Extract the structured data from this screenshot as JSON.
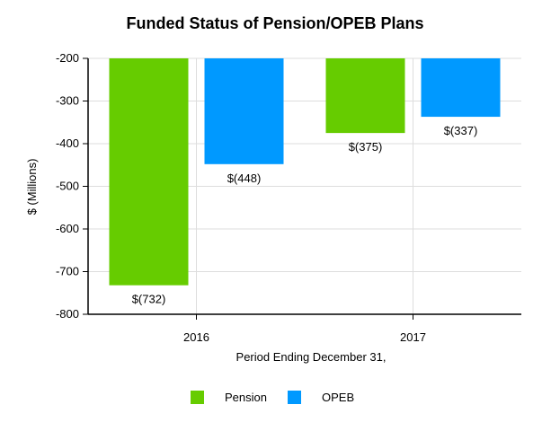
{
  "chart_data": {
    "type": "bar",
    "title": "Funded Status of Pension/OPEB Plans",
    "xlabel": "Period Ending December 31,",
    "ylabel": "$ (Millions)",
    "categories": [
      "2016",
      "2017"
    ],
    "ylim": [
      -800,
      -200
    ],
    "yticks": [
      -200,
      -300,
      -400,
      -500,
      -600,
      -700,
      -800
    ],
    "grid": true,
    "legend_position": "bottom-center",
    "series": [
      {
        "name": "Pension",
        "color": "#66cc00",
        "values": [
          -732,
          -375
        ],
        "labels": [
          "$(732)",
          "$(375)"
        ]
      },
      {
        "name": "OPEB",
        "color": "#0099ff",
        "values": [
          -448,
          -337
        ],
        "labels": [
          "$(448)",
          "$(337)"
        ]
      }
    ]
  }
}
